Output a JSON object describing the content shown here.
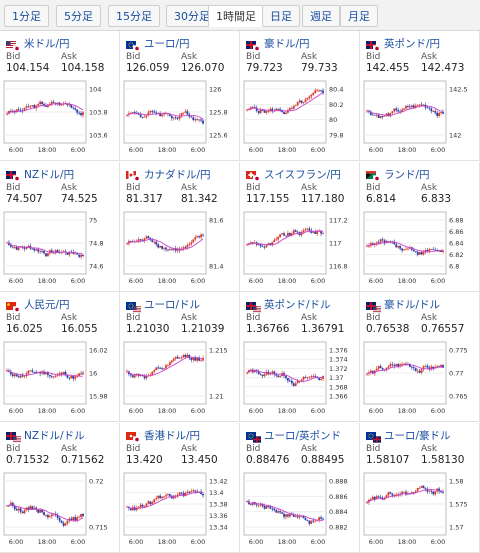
{
  "tabs": [
    {
      "label": "1分足"
    },
    {
      "label": "5分足"
    },
    {
      "label": "15分足"
    },
    {
      "label": "30分足"
    },
    {
      "label": "1時間足"
    },
    {
      "label": "日足"
    },
    {
      "label": "週足"
    },
    {
      "label": "月足"
    }
  ],
  "active_tab": "1時間足",
  "labels": {
    "bid": "Bid",
    "ask": "Ask"
  },
  "colors": {
    "up": "#d93a2b",
    "down": "#2c3fa8",
    "ma": "#cc44cc",
    "link": "#1a4fa0"
  },
  "pairs": [
    {
      "name": "米ドル/円",
      "bid": "104.154",
      "ask": "104.158",
      "flag1": "us-flag-icon",
      "flag2": "jp-flag-icon",
      "ticks": [
        "104",
        "103.8",
        "103.6"
      ],
      "xt": [
        "6:00",
        "18:00",
        "6:00"
      ]
    },
    {
      "name": "ユーロ/円",
      "bid": "126.059",
      "ask": "126.070",
      "flag1": "eu-flag-icon",
      "flag2": "jp-flag-icon",
      "ticks": [
        "126",
        "125.8",
        "125.6"
      ],
      "xt": [
        "6:00",
        "18:00",
        "6:00"
      ]
    },
    {
      "name": "豪ドル/円",
      "bid": "79.723",
      "ask": "79.733",
      "flag1": "au-flag-icon",
      "flag2": "jp-flag-icon",
      "ticks": [
        "80.4",
        "80.2",
        "80",
        "79.8"
      ],
      "xt": [
        "6:00",
        "18:00",
        "6:00"
      ]
    },
    {
      "name": "英ポンド/円",
      "bid": "142.455",
      "ask": "142.473",
      "flag1": "uk-flag-icon",
      "flag2": "jp-flag-icon",
      "ticks": [
        "142.5",
        "142"
      ],
      "xt": [
        "6:00",
        "18:00",
        "6:00"
      ]
    },
    {
      "name": "NZドル/円",
      "bid": "74.507",
      "ask": "74.525",
      "flag1": "nz-flag-icon",
      "flag2": "jp-flag-icon",
      "ticks": [
        "75",
        "74.8",
        "74.6"
      ],
      "xt": [
        "6:00",
        "18:00",
        "6:00"
      ]
    },
    {
      "name": "カナダドル/円",
      "bid": "81.317",
      "ask": "81.342",
      "flag1": "ca-flag-icon",
      "flag2": "jp-flag-icon",
      "ticks": [
        "81.6",
        "81.4"
      ],
      "xt": [
        "6:00",
        "18:00",
        "6:00"
      ]
    },
    {
      "name": "スイスフラン/円",
      "bid": "117.155",
      "ask": "117.180",
      "flag1": "ch-flag-icon",
      "flag2": "jp-flag-icon",
      "ticks": [
        "117.2",
        "117",
        "116.8"
      ],
      "xt": [
        "6:00",
        "18:00",
        "6:00"
      ]
    },
    {
      "name": "ランド/円",
      "bid": "6.814",
      "ask": "6.833",
      "flag1": "za-flag-icon",
      "flag2": "jp-flag-icon",
      "ticks": [
        "6.88",
        "6.86",
        "6.84",
        "6.82",
        "6.8"
      ],
      "xt": [
        "6:00",
        "18:00",
        "6:00"
      ]
    },
    {
      "name": "人民元/円",
      "bid": "16.025",
      "ask": "16.055",
      "flag1": "cn-flag-icon",
      "flag2": "jp-flag-icon",
      "ticks": [
        "16.02",
        "16",
        "15.98"
      ],
      "xt": [
        "6:00",
        "18:00",
        "6:00"
      ]
    },
    {
      "name": "ユーロ/ドル",
      "bid": "1.21030",
      "ask": "1.21039",
      "flag1": "eu-flag-icon",
      "flag2": "us-flag-icon",
      "ticks": [
        "1.215",
        "1.21"
      ],
      "xt": [
        "6:00",
        "18:00",
        "6:00"
      ]
    },
    {
      "name": "英ポンド/ドル",
      "bid": "1.36766",
      "ask": "1.36791",
      "flag1": "uk-flag-icon",
      "flag2": "us-flag-icon",
      "ticks": [
        "1.376",
        "1.374",
        "1.372",
        "1.37",
        "1.368",
        "1.366"
      ],
      "xt": [
        "6:00",
        "18:00",
        "6:00"
      ]
    },
    {
      "name": "豪ドル/ドル",
      "bid": "0.76538",
      "ask": "0.76557",
      "flag1": "au-flag-icon",
      "flag2": "us-flag-icon",
      "ticks": [
        "0.775",
        "0.77",
        "0.765"
      ],
      "xt": [
        "6:00",
        "18:00",
        "6:00"
      ]
    },
    {
      "name": "NZドル/ドル",
      "bid": "0.71532",
      "ask": "0.71562",
      "flag1": "nz-flag-icon",
      "flag2": "us-flag-icon",
      "ticks": [
        "0.72",
        "0.715"
      ],
      "xt": [
        "6:00",
        "18:00",
        "6:00"
      ]
    },
    {
      "name": "香港ドル/円",
      "bid": "13.420",
      "ask": "13.450",
      "flag1": "hk-flag-icon",
      "flag2": "jp-flag-icon",
      "ticks": [
        "13.42",
        "13.4",
        "13.38",
        "13.36",
        "13.34"
      ],
      "xt": [
        "6:00",
        "18:00",
        "6:00"
      ]
    },
    {
      "name": "ユーロ/英ポンド",
      "bid": "0.88476",
      "ask": "0.88495",
      "flag1": "eu-flag-icon",
      "flag2": "uk-flag-icon",
      "ticks": [
        "0.888",
        "0.886",
        "0.884",
        "0.882"
      ],
      "xt": [
        "6:00",
        "18:00",
        "6:00"
      ]
    },
    {
      "name": "ユーロ/豪ドル",
      "bid": "1.58107",
      "ask": "1.58130",
      "flag1": "eu-flag-icon",
      "flag2": "au-flag-icon",
      "ticks": [
        "1.58",
        "1.575",
        "1.57"
      ],
      "xt": [
        "6:00",
        "18:00",
        "6:00"
      ]
    }
  ]
}
